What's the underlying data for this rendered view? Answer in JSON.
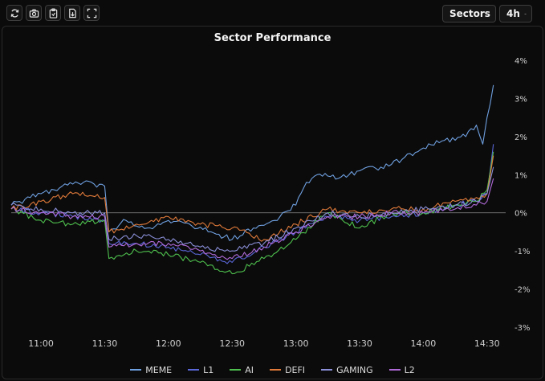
{
  "toolbar": {
    "icons": [
      "refresh-icon",
      "camera-icon",
      "clipboard-icon",
      "export-file-icon",
      "fullscreen-icon"
    ],
    "sectors_dropdown": "Sectors",
    "interval_dropdown": "4h"
  },
  "chart_data": {
    "type": "line",
    "title": "Sector Performance",
    "xlabel": "",
    "ylabel": "",
    "x_ticks": [
      "11:00",
      "11:30",
      "12:00",
      "12:30",
      "13:00",
      "13:30",
      "14:00",
      "14:30"
    ],
    "x_range": [
      "10:46",
      "14:35"
    ],
    "y_ticks": [
      "4%",
      "3%",
      "2%",
      "1%",
      "0%",
      "-1%",
      "-2%",
      "-3%"
    ],
    "ylim": [
      -3,
      4
    ],
    "y_axis_side": "right",
    "zero_line": true,
    "grid": false,
    "legend_position": "bottom",
    "series": [
      {
        "name": "MEME",
        "color": "#6fa0e0",
        "x": [
          "10:46",
          "10:55",
          "11:00",
          "11:10",
          "11:20",
          "11:30",
          "11:32",
          "11:40",
          "11:50",
          "12:00",
          "12:10",
          "12:20",
          "12:30",
          "12:40",
          "12:50",
          "13:00",
          "13:05",
          "13:10",
          "13:20",
          "13:30",
          "13:40",
          "13:50",
          "14:00",
          "14:10",
          "14:20",
          "14:25",
          "14:28",
          "14:30",
          "14:33"
        ],
        "values": [
          0.2,
          0.4,
          0.5,
          0.7,
          0.8,
          0.7,
          -0.5,
          -0.2,
          -0.4,
          -0.2,
          -0.3,
          -0.5,
          -0.7,
          -0.4,
          -0.2,
          0.2,
          0.8,
          1.0,
          0.9,
          1.1,
          1.2,
          1.4,
          1.7,
          1.9,
          2.0,
          2.3,
          1.8,
          2.5,
          3.35
        ]
      },
      {
        "name": "L1",
        "color": "#5a67d8",
        "x": [
          "10:46",
          "11:00",
          "11:15",
          "11:30",
          "11:32",
          "11:45",
          "12:00",
          "12:15",
          "12:30",
          "12:45",
          "13:00",
          "13:15",
          "13:30",
          "13:45",
          "14:00",
          "14:15",
          "14:25",
          "14:30",
          "14:33"
        ],
        "values": [
          0.1,
          0.0,
          -0.1,
          -0.2,
          -0.8,
          -0.8,
          -0.9,
          -1.1,
          -1.3,
          -0.9,
          -0.5,
          -0.1,
          -0.2,
          -0.1,
          0.0,
          0.2,
          0.3,
          0.5,
          1.8
        ]
      },
      {
        "name": "AI",
        "color": "#4ec04e",
        "x": [
          "10:46",
          "11:00",
          "11:15",
          "11:30",
          "11:32",
          "11:45",
          "12:00",
          "12:15",
          "12:30",
          "12:45",
          "13:00",
          "13:15",
          "13:30",
          "13:45",
          "14:00",
          "14:15",
          "14:25",
          "14:30",
          "14:33"
        ],
        "values": [
          0.1,
          -0.2,
          -0.3,
          -0.2,
          -1.2,
          -1.0,
          -1.1,
          -1.3,
          -1.6,
          -1.2,
          -0.7,
          0.0,
          -0.4,
          0.0,
          0.0,
          0.2,
          0.3,
          0.6,
          1.6
        ]
      },
      {
        "name": "DEFI",
        "color": "#e07a3a",
        "x": [
          "10:46",
          "11:00",
          "11:15",
          "11:30",
          "11:32",
          "11:45",
          "12:00",
          "12:15",
          "12:30",
          "12:45",
          "13:00",
          "13:15",
          "13:30",
          "13:45",
          "14:00",
          "14:15",
          "14:25",
          "14:30",
          "14:33"
        ],
        "values": [
          0.1,
          0.3,
          0.5,
          0.4,
          -0.5,
          -0.3,
          -0.1,
          -0.3,
          -0.4,
          -0.7,
          -0.3,
          0.1,
          0.0,
          0.1,
          0.1,
          0.3,
          0.4,
          0.5,
          1.5
        ]
      },
      {
        "name": "GAMING",
        "color": "#8a8fd8",
        "x": [
          "10:46",
          "11:00",
          "11:15",
          "11:30",
          "11:32",
          "11:45",
          "12:00",
          "12:15",
          "12:30",
          "12:45",
          "13:00",
          "13:15",
          "13:30",
          "13:45",
          "14:00",
          "14:15",
          "14:25",
          "14:30",
          "14:33"
        ],
        "values": [
          0.2,
          0.1,
          0.0,
          0.0,
          -0.7,
          -0.6,
          -0.7,
          -0.9,
          -1.0,
          -0.8,
          -0.4,
          0.0,
          -0.1,
          0.0,
          0.1,
          0.2,
          0.3,
          0.5,
          1.2
        ]
      },
      {
        "name": "L2",
        "color": "#b06ad8",
        "x": [
          "10:46",
          "11:00",
          "11:15",
          "11:30",
          "11:32",
          "11:45",
          "12:00",
          "12:15",
          "12:30",
          "12:45",
          "13:00",
          "13:15",
          "13:30",
          "13:45",
          "14:00",
          "14:15",
          "14:25",
          "14:30",
          "14:33"
        ],
        "values": [
          0.1,
          0.0,
          -0.1,
          -0.1,
          -0.9,
          -0.8,
          -0.8,
          -1.0,
          -1.2,
          -0.9,
          -0.5,
          -0.1,
          -0.1,
          0.0,
          0.0,
          0.1,
          0.2,
          0.3,
          0.9
        ]
      }
    ]
  }
}
